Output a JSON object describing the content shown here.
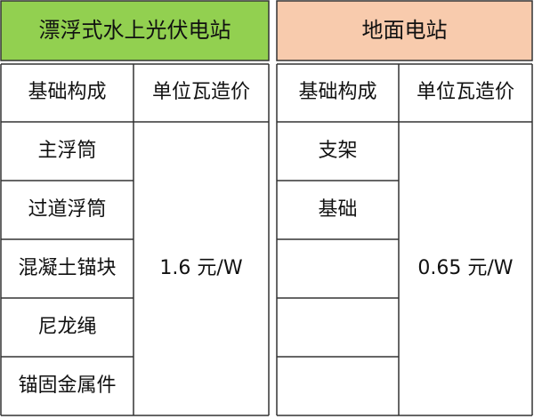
{
  "tables": [
    {
      "title": "漂浮式水上光伏电站",
      "headers": [
        "基础构成",
        "单位瓦造价"
      ],
      "components": [
        "主浮筒",
        "过道浮筒",
        "混凝土锚块",
        "尼龙绳",
        "锚固金属件"
      ],
      "price": "1.6 元/W"
    },
    {
      "title": "地面电站",
      "headers": [
        "基础构成",
        "单位瓦造价"
      ],
      "components": [
        "支架",
        "基础"
      ],
      "price": "0.65 元/W"
    }
  ]
}
